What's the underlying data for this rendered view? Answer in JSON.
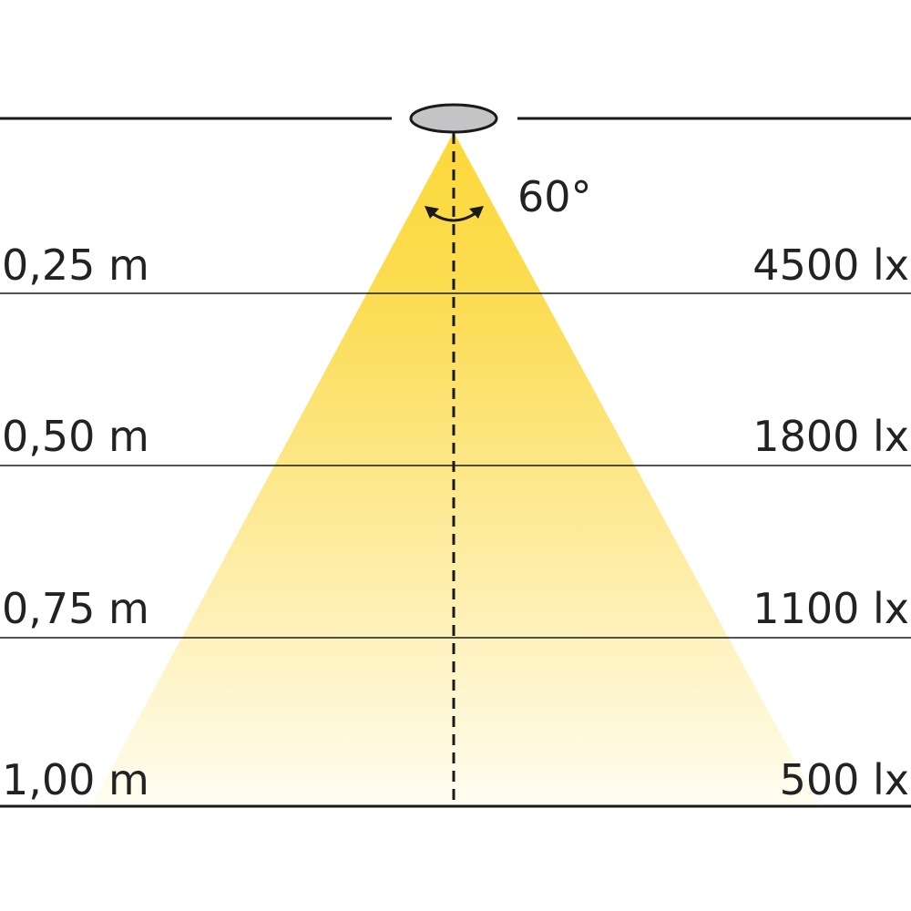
{
  "beam_angle": "60°",
  "colors": {
    "beam_top": "#fcd93a",
    "beam_bottom": "#fffdf2",
    "fixture": "#c4c4c6",
    "line": "#1a1a1a"
  },
  "levels": [
    {
      "distance": "0,25 m",
      "illuminance": "4500 lx"
    },
    {
      "distance": "0,50 m",
      "illuminance": "1800 lx"
    },
    {
      "distance": "0,75 m",
      "illuminance": "1100 lx"
    },
    {
      "distance": "1,00 m",
      "illuminance": "500 lx"
    }
  ]
}
